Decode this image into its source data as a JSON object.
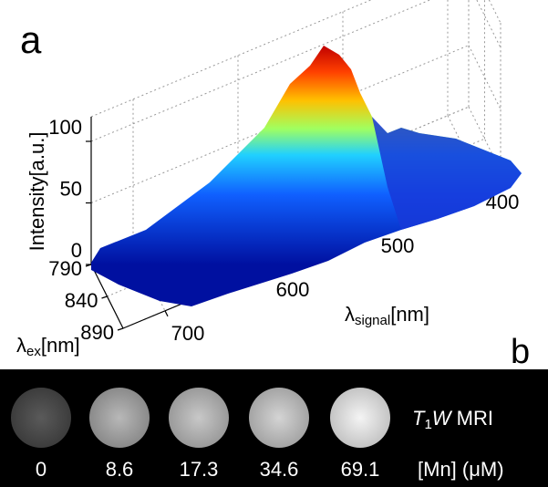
{
  "chart_data": {
    "type": "surface",
    "panel_label": "a",
    "xlabel": {
      "symbol": "λ",
      "subscript": "signal",
      "unit": "[nm]"
    },
    "ylabel": {
      "symbol": "λ",
      "subscript": "ex",
      "unit": "[nm]"
    },
    "zlabel": "Intensity[a.u.]",
    "xlim": [
      380,
      740
    ],
    "xticks": [
      400,
      500,
      600,
      700
    ],
    "ylim": [
      790,
      890
    ],
    "yticks": [
      790,
      840,
      890
    ],
    "zlim": [
      0,
      120
    ],
    "zticks": [
      0,
      50,
      100
    ],
    "grid": true
  },
  "mri": {
    "panel_label": "b",
    "sequence": {
      "t": "T",
      "sub": "1",
      "w": "W",
      "rest": " MRI"
    },
    "concentrations": [
      0,
      8.6,
      17.3,
      34.6,
      69.1
    ],
    "unit_label": "[Mn] (μM)"
  }
}
